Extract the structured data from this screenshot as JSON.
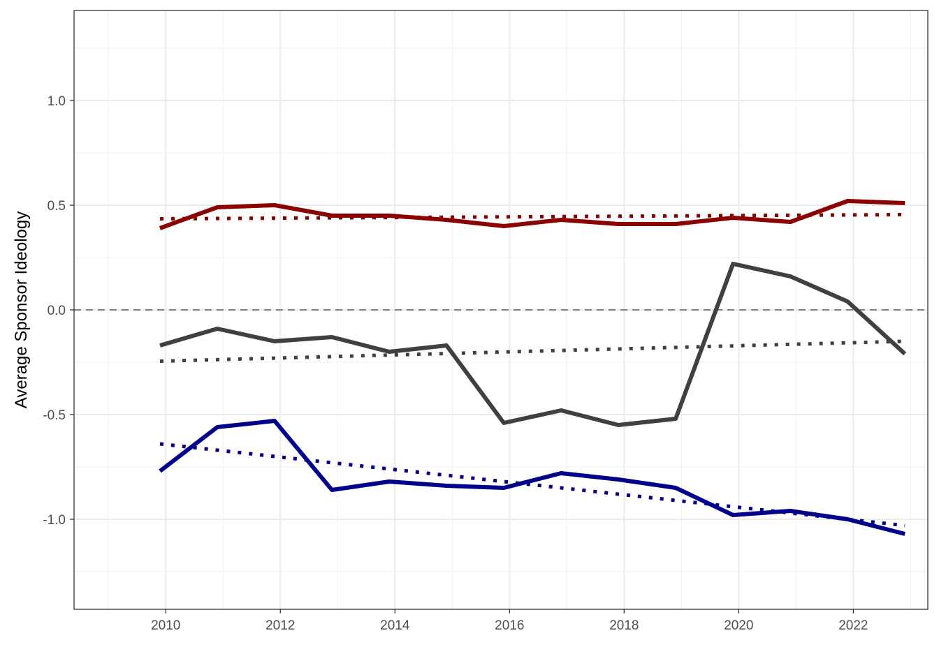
{
  "chart_data": {
    "type": "line",
    "title": "",
    "xlabel": "",
    "ylabel": "Average Sponsor Ideology",
    "xlim": [
      2008.4,
      2023.3
    ],
    "ylim": [
      -1.43,
      1.43
    ],
    "x_ticks": [
      2010,
      2012,
      2014,
      2016,
      2018,
      2020,
      2022
    ],
    "x_tick_labels": [
      "2010",
      "2012",
      "2014",
      "2016",
      "2018",
      "2020",
      "2022"
    ],
    "y_ticks": [
      1.0,
      0.5,
      0.0,
      -0.5,
      -1.0
    ],
    "y_tick_labels": [
      "1.0",
      "0.5",
      "0.0",
      "-0.5",
      "-1.0"
    ],
    "grid": true,
    "legend": "none",
    "reference_line": {
      "y": 0,
      "style": "dashed",
      "color": "#808080"
    },
    "series": [
      {
        "color": "#8b0000",
        "style": "solid",
        "x": [
          2009.9,
          2010.9,
          2011.9,
          2012.9,
          2013.9,
          2014.9,
          2015.9,
          2016.9,
          2017.9,
          2018.9,
          2019.9,
          2020.9,
          2021.9,
          2022.9
        ],
        "values": [
          0.39,
          0.49,
          0.5,
          0.45,
          0.45,
          0.43,
          0.4,
          0.43,
          0.41,
          0.41,
          0.44,
          0.42,
          0.52,
          0.51
        ]
      },
      {
        "color": "#8b0000",
        "style": "dotted",
        "x": [
          2009.9,
          2022.9
        ],
        "values": [
          0.435,
          0.455
        ]
      },
      {
        "color": "#404040",
        "style": "solid",
        "x": [
          2009.9,
          2010.9,
          2011.9,
          2012.9,
          2013.9,
          2014.9,
          2015.9,
          2016.9,
          2017.9,
          2018.9,
          2019.9,
          2020.9,
          2021.9,
          2022.9
        ],
        "values": [
          -0.17,
          -0.09,
          -0.15,
          -0.13,
          -0.2,
          -0.17,
          -0.54,
          -0.48,
          -0.55,
          -0.52,
          0.22,
          0.16,
          0.04,
          -0.21
        ]
      },
      {
        "color": "#404040",
        "style": "dotted",
        "x": [
          2009.9,
          2022.9
        ],
        "values": [
          -0.245,
          -0.15
        ]
      },
      {
        "color": "#00008b",
        "style": "solid",
        "x": [
          2009.9,
          2010.9,
          2011.9,
          2012.9,
          2013.9,
          2014.9,
          2015.9,
          2016.9,
          2017.9,
          2018.9,
          2019.9,
          2020.9,
          2021.9,
          2022.9
        ],
        "values": [
          -0.77,
          -0.56,
          -0.53,
          -0.86,
          -0.82,
          -0.84,
          -0.85,
          -0.78,
          -0.81,
          -0.85,
          -0.98,
          -0.96,
          -1.0,
          -1.07
        ]
      },
      {
        "color": "#00008b",
        "style": "dotted",
        "x": [
          2009.9,
          2022.9
        ],
        "values": [
          -0.64,
          -1.03
        ]
      }
    ]
  }
}
